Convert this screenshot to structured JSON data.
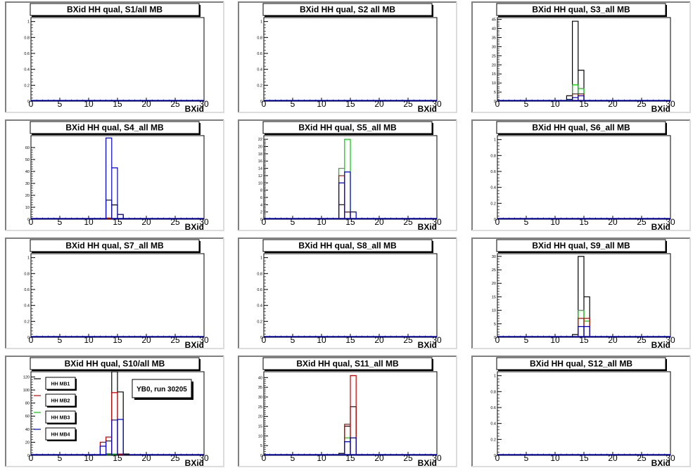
{
  "chart_data": [
    {
      "type": "histogram",
      "title": "BXid HH qual, S1/all MB",
      "xlabel": "BXid",
      "xlim": [
        0,
        30
      ],
      "xticks": [
        0,
        5,
        10,
        15,
        20,
        25,
        30
      ],
      "ylim": [
        0,
        1.05
      ],
      "yticks": [
        0,
        0.2,
        0.4,
        0.6,
        0.8,
        1
      ],
      "ytick_labels": [
        "0",
        "0.2",
        "0.4",
        "0.6",
        "0.8",
        "1"
      ],
      "series": []
    },
    {
      "type": "histogram",
      "title": "BXid HH qual, S2 all MB",
      "xlabel": "BXid",
      "xlim": [
        0,
        30
      ],
      "xticks": [
        0,
        5,
        10,
        15,
        20,
        25,
        30
      ],
      "ylim": [
        0,
        1.05
      ],
      "yticks": [
        0,
        0.2,
        0.4,
        0.6,
        0.8,
        1
      ],
      "ytick_labels": [
        "0",
        "0.2",
        "0.4",
        "0.6",
        "0.8",
        "1"
      ],
      "series": []
    },
    {
      "type": "histogram",
      "title": "BXid HH qual, S3_all MB",
      "xlabel": "BXid",
      "xlim": [
        0,
        30
      ],
      "xticks": [
        0,
        5,
        10,
        15,
        20,
        25,
        30
      ],
      "ylim": [
        0,
        46
      ],
      "yticks": [
        0,
        5,
        10,
        15,
        20,
        25,
        30,
        35,
        40,
        45
      ],
      "ytick_labels": [
        "0",
        "5",
        "10",
        "15",
        "20",
        "25",
        "30",
        "35",
        "40",
        "45"
      ],
      "series": [
        {
          "color": "#000000",
          "bins": [
            [
              12,
              3
            ],
            [
              13,
              44
            ],
            [
              14,
              17
            ]
          ]
        },
        {
          "color": "#00cc00",
          "bins": [
            [
              12,
              1
            ],
            [
              13,
              9
            ],
            [
              14,
              7
            ]
          ]
        },
        {
          "color": "#cc0000",
          "bins": [
            [
              13,
              4
            ],
            [
              14,
              4
            ]
          ]
        },
        {
          "color": "#0000cc",
          "bins": [
            [
              12,
              1
            ],
            [
              13,
              2
            ],
            [
              14,
              3
            ]
          ]
        }
      ]
    },
    {
      "type": "histogram",
      "title": "BXid HH qual, S4_all MB",
      "xlabel": "BXid",
      "xlim": [
        0,
        30
      ],
      "xticks": [
        0,
        5,
        10,
        15,
        20,
        25,
        30
      ],
      "ylim": [
        0,
        70
      ],
      "yticks": [
        0,
        10,
        20,
        30,
        40,
        50,
        60
      ],
      "ytick_labels": [
        "0",
        "10",
        "20",
        "30",
        "40",
        "50",
        "60"
      ],
      "series": [
        {
          "color": "#000000",
          "bins": [
            [
              13,
              16
            ],
            [
              14,
              12
            ],
            [
              15,
              4
            ]
          ]
        },
        {
          "color": "#00cc00",
          "bins": [
            [
              13,
              1
            ]
          ]
        },
        {
          "color": "#cc0000",
          "bins": [
            [
              13,
              1
            ]
          ]
        },
        {
          "color": "#0000cc",
          "bins": [
            [
              13,
              68
            ],
            [
              14,
              43
            ],
            [
              15,
              4
            ]
          ]
        }
      ]
    },
    {
      "type": "histogram",
      "title": "BXid HH qual, S5_all MB",
      "xlabel": "BXid",
      "xlim": [
        0,
        30
      ],
      "xticks": [
        0,
        5,
        10,
        15,
        20,
        25,
        30
      ],
      "ylim": [
        0,
        23
      ],
      "yticks": [
        0,
        2,
        4,
        6,
        8,
        10,
        12,
        14,
        16,
        18,
        20,
        22
      ],
      "ytick_labels": [
        "0",
        "2",
        "4",
        "6",
        "8",
        "10",
        "12",
        "14",
        "16",
        "18",
        "20",
        "22"
      ],
      "series": [
        {
          "color": "#000000",
          "bins": [
            [
              13,
              4
            ],
            [
              14,
              2
            ]
          ]
        },
        {
          "color": "#00cc00",
          "bins": [
            [
              13,
              14
            ],
            [
              14,
              22
            ]
          ]
        },
        {
          "color": "#cc0000",
          "bins": [
            [
              13,
              12
            ],
            [
              14,
              2
            ]
          ]
        },
        {
          "color": "#0000cc",
          "bins": [
            [
              13,
              10
            ],
            [
              14,
              13
            ],
            [
              15,
              2
            ]
          ]
        }
      ]
    },
    {
      "type": "histogram",
      "title": "BXid HH qual, S6_all MB",
      "xlabel": "BXid",
      "xlim": [
        0,
        30
      ],
      "xticks": [
        0,
        5,
        10,
        15,
        20,
        25,
        30
      ],
      "ylim": [
        0,
        1.05
      ],
      "yticks": [
        0,
        0.2,
        0.4,
        0.6,
        0.8,
        1
      ],
      "ytick_labels": [
        "0",
        "0.2",
        "0.4",
        "0.6",
        "0.8",
        "1"
      ],
      "series": []
    },
    {
      "type": "histogram",
      "title": "BXid HH qual, S7_all MB",
      "xlabel": "BXid",
      "xlim": [
        0,
        30
      ],
      "xticks": [
        0,
        5,
        10,
        15,
        20,
        25,
        30
      ],
      "ylim": [
        0,
        1.05
      ],
      "yticks": [
        0,
        0.2,
        0.4,
        0.6,
        0.8,
        1
      ],
      "ytick_labels": [
        "0",
        "0.2",
        "0.4",
        "0.6",
        "0.8",
        "1"
      ],
      "series": []
    },
    {
      "type": "histogram",
      "title": "BXid HH qual, S8_all MB",
      "xlabel": "BXid",
      "xlim": [
        0,
        30
      ],
      "xticks": [
        0,
        5,
        10,
        15,
        20,
        25,
        30
      ],
      "ylim": [
        0,
        1.05
      ],
      "yticks": [
        0,
        0.2,
        0.4,
        0.6,
        0.8,
        1
      ],
      "ytick_labels": [
        "0",
        "0.2",
        "0.4",
        "0.6",
        "0.8",
        "1"
      ],
      "series": []
    },
    {
      "type": "histogram",
      "title": "BXid HH qual, S9_all MB",
      "xlabel": "BXid",
      "xlim": [
        0,
        30
      ],
      "xticks": [
        0,
        5,
        10,
        15,
        20,
        25,
        30
      ],
      "ylim": [
        0,
        31
      ],
      "yticks": [
        0,
        5,
        10,
        15,
        20,
        25,
        30
      ],
      "ytick_labels": [
        "0",
        "5",
        "10",
        "15",
        "20",
        "25",
        "30"
      ],
      "series": [
        {
          "color": "#000000",
          "bins": [
            [
              13,
              1
            ],
            [
              14,
              30
            ],
            [
              15,
              15
            ]
          ]
        },
        {
          "color": "#00cc00",
          "bins": [
            [
              14,
              10
            ],
            [
              15,
              6
            ]
          ]
        },
        {
          "color": "#cc0000",
          "bins": [
            [
              14,
              7
            ],
            [
              15,
              7
            ]
          ]
        },
        {
          "color": "#0000cc",
          "bins": [
            [
              14,
              4
            ],
            [
              15,
              4
            ]
          ]
        }
      ]
    },
    {
      "type": "histogram",
      "title": "BXid HH qual, S10/all MB",
      "xlabel": "BXid",
      "xlim": [
        0,
        30
      ],
      "xticks": [
        0,
        5,
        10,
        15,
        20,
        25,
        30
      ],
      "ylim": [
        0,
        128
      ],
      "yticks": [
        0,
        20,
        40,
        60,
        80,
        100,
        120
      ],
      "ytick_labels": [
        "0",
        "20",
        "40",
        "60",
        "80",
        "100",
        "120"
      ],
      "series": [
        {
          "color": "#000000",
          "bins": [
            [
              13,
              2
            ],
            [
              14,
              128
            ],
            [
              15,
              97
            ],
            [
              16,
              2
            ]
          ]
        },
        {
          "color": "#00cc00",
          "bins": [
            [
              13,
              1
            ],
            [
              14,
              2
            ]
          ]
        },
        {
          "color": "#cc0000",
          "bins": [
            [
              12,
              20
            ],
            [
              13,
              28
            ],
            [
              14,
              96
            ],
            [
              15,
              2
            ]
          ]
        },
        {
          "color": "#0000cc",
          "bins": [
            [
              12,
              14
            ],
            [
              13,
              22
            ],
            [
              14,
              54
            ],
            [
              15,
              55
            ]
          ]
        }
      ],
      "legend": [
        {
          "label": "HH MB1",
          "color": "#000000"
        },
        {
          "label": "HH MB2",
          "color": "#cc0000"
        },
        {
          "label": "HH MB3",
          "color": "#00cc00"
        },
        {
          "label": "HH MB4",
          "color": "#0000cc"
        }
      ],
      "annotation": "YB0, run 30205"
    },
    {
      "type": "histogram",
      "title": "BXid HH qual, S11_all MB",
      "xlabel": "BXid",
      "xlim": [
        0,
        30
      ],
      "xticks": [
        0,
        5,
        10,
        15,
        20,
        25,
        30
      ],
      "ylim": [
        0,
        43
      ],
      "yticks": [
        0,
        5,
        10,
        15,
        20,
        25,
        30,
        35,
        40
      ],
      "ytick_labels": [
        "0",
        "5",
        "10",
        "15",
        "20",
        "25",
        "30",
        "35",
        "40"
      ],
      "series": [
        {
          "color": "#000000",
          "bins": [
            [
              13,
              1
            ],
            [
              14,
              15
            ],
            [
              15,
              25
            ]
          ]
        },
        {
          "color": "#00cc00",
          "bins": [
            [
              14,
              9
            ],
            [
              15,
              9
            ]
          ]
        },
        {
          "color": "#cc0000",
          "bins": [
            [
              14,
              16
            ],
            [
              15,
              41
            ]
          ]
        },
        {
          "color": "#0000cc",
          "bins": [
            [
              14,
              7
            ],
            [
              15,
              9
            ]
          ]
        }
      ]
    },
    {
      "type": "histogram",
      "title": "BXid HH qual, S12_all MB",
      "xlabel": "BXid",
      "xlim": [
        0,
        30
      ],
      "xticks": [
        0,
        5,
        10,
        15,
        20,
        25,
        30
      ],
      "ylim": [
        0,
        1.05
      ],
      "yticks": [
        0,
        0.2,
        0.4,
        0.6,
        0.8,
        1
      ],
      "ytick_labels": [
        "0",
        "0.2",
        "0.4",
        "0.6",
        "0.8",
        "1"
      ],
      "series": []
    }
  ]
}
